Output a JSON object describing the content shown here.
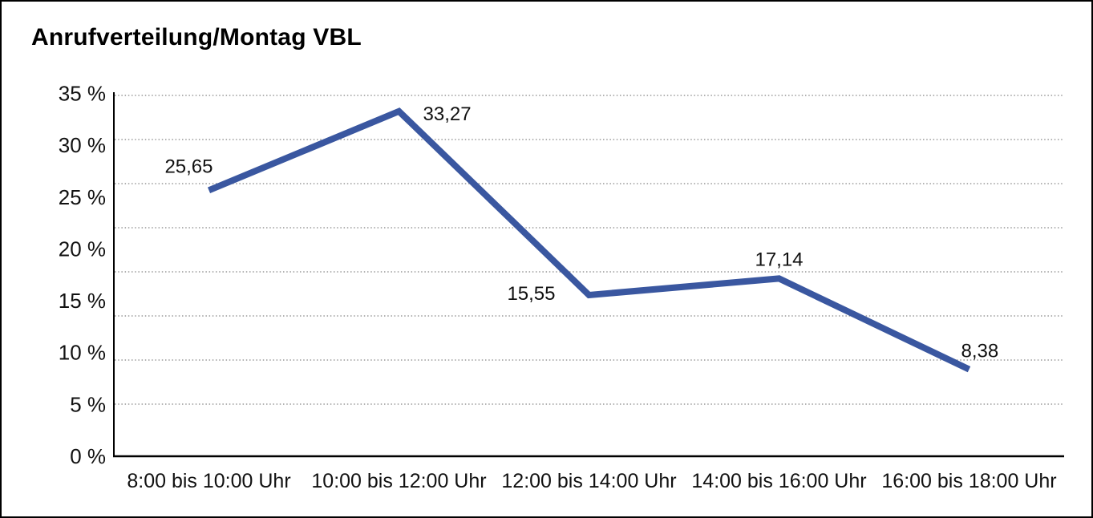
{
  "chart_data": {
    "type": "line",
    "title": "Anrufverteilung/Montag VBL",
    "categories": [
      "8:00 bis 10:00 Uhr",
      "10:00 bis 12:00 Uhr",
      "12:00 bis 14:00 Uhr",
      "14:00 bis 16:00 Uhr",
      "16:00 bis 18:00 Uhr"
    ],
    "values": [
      25.65,
      33.27,
      15.55,
      17.14,
      8.38
    ],
    "value_labels": [
      "25,65",
      "33,27",
      "15,55",
      "17,14",
      "8,38"
    ],
    "series_name": "Anrufverteilung Montag VBL",
    "xlabel": "",
    "ylabel": "",
    "ylim": [
      0,
      35
    ],
    "y_ticks": {
      "values": [
        35,
        30,
        25,
        20,
        15,
        10,
        5,
        0
      ],
      "labels": [
        "35 %",
        "30 %",
        "25 %",
        "20 %",
        "15 %",
        "10 %",
        "5 %",
        "0 %"
      ]
    },
    "grid": "horizontal-dotted",
    "legend": "none",
    "colors": {
      "line": "#3A57A0",
      "grid": "#858585",
      "axis": "#000000",
      "text": "#111111",
      "background": "#FFFFFF",
      "border": "#000000"
    }
  }
}
